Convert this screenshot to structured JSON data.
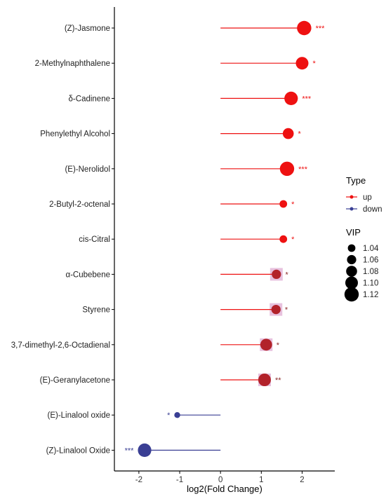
{
  "chart_data": {
    "type": "lollipop",
    "xlabel": "log2(Fold Change)",
    "xlim": [
      -2.6,
      2.8
    ],
    "xticks": [
      -2,
      -1,
      0,
      1,
      2
    ],
    "xtick_labels": [
      "-2",
      "-1",
      "0",
      "1",
      "2"
    ],
    "grid": false,
    "legend_position": "right",
    "colors": {
      "up": "#ee1111",
      "down": "#3a3f94",
      "highlight": "#e3b6d8"
    },
    "items": [
      {
        "name": "(Z)-Jasmone",
        "value": 2.05,
        "type": "up",
        "vip": 1.12,
        "sig": "***"
      },
      {
        "name": "2-Methylnaphthalene",
        "value": 2.0,
        "type": "up",
        "vip": 1.1,
        "sig": "*"
      },
      {
        "name": "δ-Cadinene",
        "value": 1.73,
        "type": "up",
        "vip": 1.11,
        "sig": "***"
      },
      {
        "name": "Phenylethyl Alcohol",
        "value": 1.66,
        "type": "up",
        "vip": 1.08,
        "sig": "*"
      },
      {
        "name": "(E)-Nerolidol",
        "value": 1.63,
        "type": "up",
        "vip": 1.12,
        "sig": "***"
      },
      {
        "name": "2-Butyl-2-octenal",
        "value": 1.54,
        "type": "up",
        "vip": 1.04,
        "sig": "*"
      },
      {
        "name": "cis-Citral",
        "value": 1.54,
        "type": "up",
        "vip": 1.04,
        "sig": "*"
      },
      {
        "name": "α-Cubebene",
        "value": 1.37,
        "type": "up",
        "vip": 1.06,
        "sig": "*",
        "highlight": true
      },
      {
        "name": "Styrene",
        "value": 1.36,
        "type": "up",
        "vip": 1.06,
        "sig": "*",
        "highlight": true
      },
      {
        "name": "3,7-dimethyl-2,6-Octadienal",
        "value": 1.12,
        "type": "up",
        "vip": 1.09,
        "sig": "*",
        "highlight": true
      },
      {
        "name": "(E)-Geranylacetone",
        "value": 1.08,
        "type": "up",
        "vip": 1.1,
        "sig": "**",
        "highlight": true
      },
      {
        "name": "(E)-Linalool oxide",
        "value": -1.06,
        "type": "down",
        "vip": 1.02,
        "sig": "*"
      },
      {
        "name": "(Z)-Linalool Oxide",
        "value": -1.86,
        "type": "down",
        "vip": 1.11,
        "sig": "***"
      }
    ],
    "legend": {
      "type_title": "Type",
      "type_items": [
        {
          "label": "up",
          "key": "up"
        },
        {
          "label": "down",
          "key": "down"
        }
      ],
      "vip_title": "VIP",
      "vip_items": [
        {
          "label": "1.04",
          "vip": 1.04
        },
        {
          "label": "1.06",
          "vip": 1.06
        },
        {
          "label": "1.08",
          "vip": 1.08
        },
        {
          "label": "1.10",
          "vip": 1.1
        },
        {
          "label": "1.12",
          "vip": 1.12
        }
      ]
    }
  }
}
